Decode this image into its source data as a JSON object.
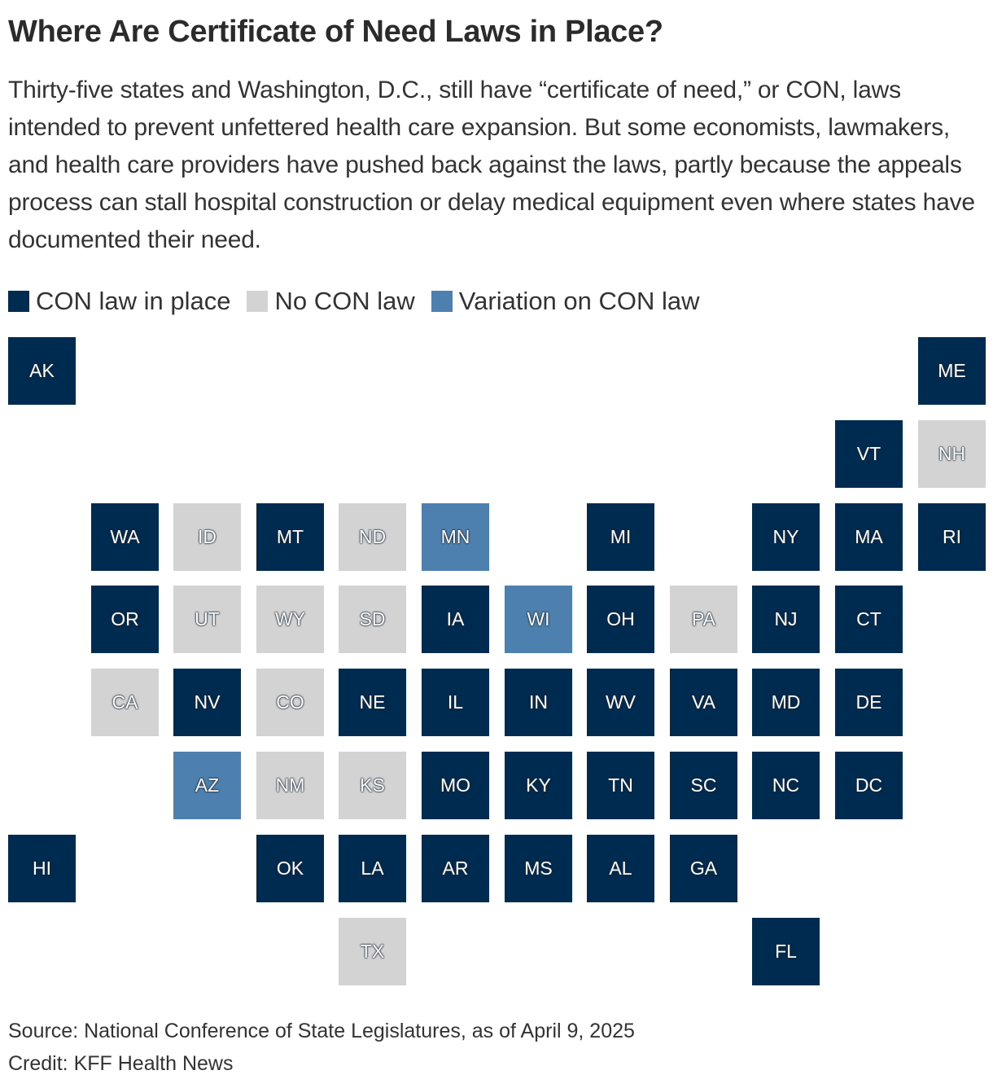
{
  "title": "Where Are Certificate of Need Laws in Place?",
  "subtitle": "Thirty-five states and Washington, D.C., still have “certificate of need,” or CON, laws intended to prevent unfettered health care expansion. But some economists, lawmakers, and health care providers have pushed back against the laws, partly because the appeals process can stall hospital construction or delay medical equipment even where states have documented their need.",
  "legend": [
    {
      "key": "con",
      "label": "CON law in place",
      "color": "#002b50"
    },
    {
      "key": "none",
      "label": "No CON law",
      "color": "#d3d3d3"
    },
    {
      "key": "variation",
      "label": "Variation on CON law",
      "color": "#4d80ae"
    }
  ],
  "tiles": [
    {
      "state": "AK",
      "col": 0,
      "row": 0,
      "status": "con"
    },
    {
      "state": "ME",
      "col": 11,
      "row": 0,
      "status": "con"
    },
    {
      "state": "VT",
      "col": 10,
      "row": 1,
      "status": "con"
    },
    {
      "state": "NH",
      "col": 11,
      "row": 1,
      "status": "none"
    },
    {
      "state": "WA",
      "col": 1,
      "row": 2,
      "status": "con"
    },
    {
      "state": "ID",
      "col": 2,
      "row": 2,
      "status": "none"
    },
    {
      "state": "MT",
      "col": 3,
      "row": 2,
      "status": "con"
    },
    {
      "state": "ND",
      "col": 4,
      "row": 2,
      "status": "none"
    },
    {
      "state": "MN",
      "col": 5,
      "row": 2,
      "status": "variation"
    },
    {
      "state": "MI",
      "col": 7,
      "row": 2,
      "status": "con"
    },
    {
      "state": "NY",
      "col": 9,
      "row": 2,
      "status": "con"
    },
    {
      "state": "MA",
      "col": 10,
      "row": 2,
      "status": "con"
    },
    {
      "state": "RI",
      "col": 11,
      "row": 2,
      "status": "con"
    },
    {
      "state": "OR",
      "col": 1,
      "row": 3,
      "status": "con"
    },
    {
      "state": "UT",
      "col": 2,
      "row": 3,
      "status": "none"
    },
    {
      "state": "WY",
      "col": 3,
      "row": 3,
      "status": "none"
    },
    {
      "state": "SD",
      "col": 4,
      "row": 3,
      "status": "none"
    },
    {
      "state": "IA",
      "col": 5,
      "row": 3,
      "status": "con"
    },
    {
      "state": "WI",
      "col": 6,
      "row": 3,
      "status": "variation"
    },
    {
      "state": "OH",
      "col": 7,
      "row": 3,
      "status": "con"
    },
    {
      "state": "PA",
      "col": 8,
      "row": 3,
      "status": "none"
    },
    {
      "state": "NJ",
      "col": 9,
      "row": 3,
      "status": "con"
    },
    {
      "state": "CT",
      "col": 10,
      "row": 3,
      "status": "con"
    },
    {
      "state": "CA",
      "col": 1,
      "row": 4,
      "status": "none"
    },
    {
      "state": "NV",
      "col": 2,
      "row": 4,
      "status": "con"
    },
    {
      "state": "CO",
      "col": 3,
      "row": 4,
      "status": "none"
    },
    {
      "state": "NE",
      "col": 4,
      "row": 4,
      "status": "con"
    },
    {
      "state": "IL",
      "col": 5,
      "row": 4,
      "status": "con"
    },
    {
      "state": "IN",
      "col": 6,
      "row": 4,
      "status": "con"
    },
    {
      "state": "WV",
      "col": 7,
      "row": 4,
      "status": "con"
    },
    {
      "state": "VA",
      "col": 8,
      "row": 4,
      "status": "con"
    },
    {
      "state": "MD",
      "col": 9,
      "row": 4,
      "status": "con"
    },
    {
      "state": "DE",
      "col": 10,
      "row": 4,
      "status": "con"
    },
    {
      "state": "AZ",
      "col": 2,
      "row": 5,
      "status": "variation"
    },
    {
      "state": "NM",
      "col": 3,
      "row": 5,
      "status": "none"
    },
    {
      "state": "KS",
      "col": 4,
      "row": 5,
      "status": "none"
    },
    {
      "state": "MO",
      "col": 5,
      "row": 5,
      "status": "con"
    },
    {
      "state": "KY",
      "col": 6,
      "row": 5,
      "status": "con"
    },
    {
      "state": "TN",
      "col": 7,
      "row": 5,
      "status": "con"
    },
    {
      "state": "SC",
      "col": 8,
      "row": 5,
      "status": "con"
    },
    {
      "state": "NC",
      "col": 9,
      "row": 5,
      "status": "con"
    },
    {
      "state": "DC",
      "col": 10,
      "row": 5,
      "status": "con"
    },
    {
      "state": "HI",
      "col": 0,
      "row": 6,
      "status": "con"
    },
    {
      "state": "OK",
      "col": 3,
      "row": 6,
      "status": "con"
    },
    {
      "state": "LA",
      "col": 4,
      "row": 6,
      "status": "con"
    },
    {
      "state": "AR",
      "col": 5,
      "row": 6,
      "status": "con"
    },
    {
      "state": "MS",
      "col": 6,
      "row": 6,
      "status": "con"
    },
    {
      "state": "AL",
      "col": 7,
      "row": 6,
      "status": "con"
    },
    {
      "state": "GA",
      "col": 8,
      "row": 6,
      "status": "con"
    },
    {
      "state": "TX",
      "col": 4,
      "row": 7,
      "status": "none"
    },
    {
      "state": "FL",
      "col": 9,
      "row": 7,
      "status": "con"
    }
  ],
  "source": "Source: National Conference of State Legislatures, as of April 9, 2025",
  "credit": "Credit: KFF Health News"
}
